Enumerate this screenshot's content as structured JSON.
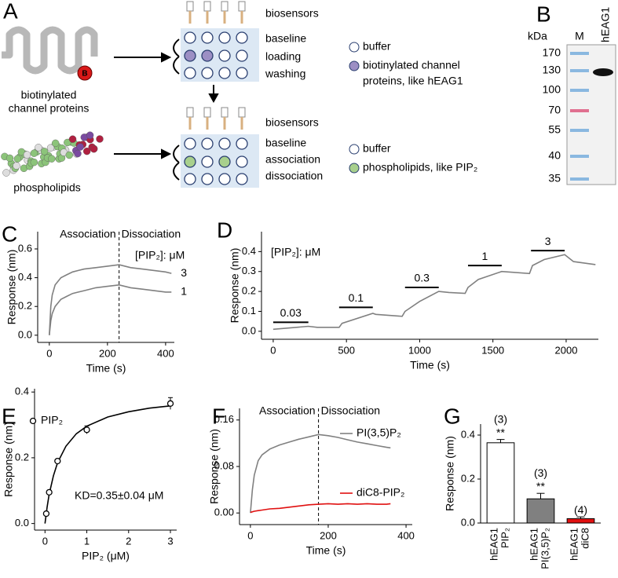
{
  "panel_a": {
    "label": "A",
    "protein_tag": "B",
    "protein_text": [
      "biotinylated",
      "channel proteins"
    ],
    "lipid_text": "phospholipids",
    "plate1": {
      "header": "biosensors",
      "rows": [
        "baseline",
        "loading",
        "washing"
      ]
    },
    "plate2": {
      "header": "biosensors",
      "rows": [
        "baseline",
        "association",
        "dissociation"
      ]
    },
    "legend1": {
      "buffer": "buffer",
      "sample": [
        "biotinylated channel",
        "proteins, like hEAG1"
      ]
    },
    "legend2": {
      "buffer": "buffer",
      "sample": [
        "phospholipids, like PIP₂"
      ]
    }
  },
  "panel_b": {
    "label": "B",
    "unit": "kDa",
    "lanes": [
      "M",
      "hEAG1"
    ],
    "markers": [
      170,
      130,
      100,
      70,
      55,
      40,
      35
    ]
  },
  "chart_data": [
    {
      "type": "line",
      "panel": "C",
      "x_label": "Time (s)",
      "y_label": "Response (nm)",
      "annotations": [
        "Association",
        "Dissociation"
      ],
      "divider_x": 240,
      "legend_title": "[PIP₂]: μM",
      "x": [
        0,
        5,
        10,
        20,
        40,
        60,
        80,
        100,
        120,
        160,
        200,
        240,
        280,
        320,
        360,
        400,
        420
      ],
      "series": [
        {
          "name": "3",
          "color": "#808080",
          "values": [
            0,
            0.2,
            0.28,
            0.35,
            0.4,
            0.42,
            0.44,
            0.45,
            0.46,
            0.47,
            0.48,
            0.49,
            0.47,
            0.46,
            0.45,
            0.44,
            0.43
          ]
        },
        {
          "name": "1",
          "color": "#808080",
          "values": [
            0,
            0.1,
            0.15,
            0.2,
            0.25,
            0.27,
            0.29,
            0.3,
            0.31,
            0.33,
            0.34,
            0.35,
            0.33,
            0.32,
            0.31,
            0.3,
            0.3
          ]
        }
      ],
      "xlim": [
        -40,
        430
      ],
      "xticks": [
        0,
        200,
        400
      ],
      "ylim": [
        -0.05,
        0.72
      ],
      "yticks": [
        {
          "value": 0,
          "label": "0.0"
        },
        0.2,
        0.4,
        0.6
      ]
    },
    {
      "type": "line",
      "panel": "D",
      "x_label": "Time (s)",
      "y_label": "Response (nm)",
      "legend_title": "[PIP₂]: μM",
      "x": [
        0,
        240,
        300,
        450,
        470,
        680,
        700,
        880,
        900,
        1000,
        1130,
        1200,
        1310,
        1330,
        1400,
        1560,
        1750,
        1770,
        1850,
        1990,
        2050,
        2200
      ],
      "series": [
        {
          "name": "PIP₂",
          "color": "#808080",
          "values": [
            0.01,
            0.025,
            0.02,
            0.02,
            0.04,
            0.09,
            0.085,
            0.075,
            0.1,
            0.15,
            0.2,
            0.195,
            0.19,
            0.22,
            0.26,
            0.3,
            0.29,
            0.33,
            0.36,
            0.385,
            0.35,
            0.335
          ]
        }
      ],
      "injections": [
        {
          "label": "0.03",
          "start": 0,
          "end": 240,
          "level": 0.045
        },
        {
          "label": "0.1",
          "start": 450,
          "end": 680,
          "level": 0.12
        },
        {
          "label": "0.3",
          "start": 900,
          "end": 1130,
          "level": 0.22
        },
        {
          "label": "1",
          "start": 1330,
          "end": 1560,
          "level": 0.33
        },
        {
          "label": "3",
          "start": 1760,
          "end": 1990,
          "level": 0.405
        }
      ],
      "xlim": [
        -80,
        2220
      ],
      "xticks": [
        0,
        500,
        1000,
        1500,
        2000
      ],
      "ylim": [
        -0.04,
        0.5
      ],
      "yticks": [
        {
          "value": 0,
          "label": "0.0"
        },
        0.1,
        0.2,
        0.3,
        0.4
      ]
    },
    {
      "type": "scatter",
      "panel": "E",
      "x_label": "PIP₂ (μM)",
      "y_label": "Response (nm)",
      "annotation": "KD=0.35±0.04 μM",
      "series": [
        {
          "name": "PIP₂",
          "color": "#000000",
          "x": [
            0.03,
            0.1,
            0.3,
            1,
            3
          ],
          "values": [
            0.03,
            0.095,
            0.19,
            0.285,
            0.365
          ],
          "errors": [
            0.003,
            0.005,
            0.005,
            0.012,
            0.018
          ]
        }
      ],
      "fit": {
        "x": [
          0,
          0.05,
          0.1,
          0.2,
          0.3,
          0.5,
          0.75,
          1,
          1.5,
          2,
          2.5,
          3
        ],
        "y": [
          0,
          0.05,
          0.089,
          0.145,
          0.185,
          0.235,
          0.273,
          0.296,
          0.324,
          0.34,
          0.351,
          0.358
        ]
      },
      "xlim": [
        -0.25,
        3.15
      ],
      "xticks": [
        0,
        1,
        2,
        3
      ],
      "ylim": [
        -0.02,
        0.41
      ],
      "yticks": [
        {
          "value": 0,
          "label": "0.0"
        },
        0.2,
        0.4
      ]
    },
    {
      "type": "line",
      "panel": "F",
      "x_label": "Time (s)",
      "y_label": "Response (nm)",
      "annotations": [
        "Association",
        "Dissociation"
      ],
      "divider_x": 175,
      "x": [
        0,
        5,
        10,
        20,
        30,
        50,
        75,
        100,
        125,
        150,
        175,
        200,
        225,
        250,
        275,
        300,
        325,
        350,
        360
      ],
      "series": [
        {
          "name": "PI(3,5)P₂",
          "color": "#808080",
          "values": [
            0,
            0.04,
            0.065,
            0.09,
            0.1,
            0.11,
            0.117,
            0.122,
            0.127,
            0.131,
            0.135,
            0.133,
            0.13,
            0.126,
            0.122,
            0.119,
            0.116,
            0.113,
            0.112
          ]
        },
        {
          "name": "diC8-PIP₂",
          "color": "#e01010",
          "values": [
            0.001,
            0.002,
            0.003,
            0.004,
            0.005,
            0.007,
            0.008,
            0.01,
            0.012,
            0.014,
            0.015,
            0.016,
            0.015,
            0.016,
            0.015,
            0.016,
            0.015,
            0.015,
            0.016
          ]
        }
      ],
      "xlim": [
        -28,
        416
      ],
      "xticks": [
        0,
        200,
        400
      ],
      "ylim": [
        -0.02,
        0.18
      ],
      "yticks": [
        {
          "value": 0,
          "label": "0.00"
        },
        {
          "value": 0.08,
          "label": "0.08"
        },
        {
          "value": 0.16,
          "label": "0.16"
        }
      ]
    },
    {
      "type": "bar",
      "panel": "G",
      "y_label": "Response (nm)",
      "categories": [
        "hEAG1 PIP₂",
        "hEAG1 PI(3,5)P₂",
        "hEAG1 diC8"
      ],
      "values": [
        0.365,
        0.11,
        0.02
      ],
      "errors": [
        0.015,
        0.025,
        0.008
      ],
      "colors": [
        "#ffffff",
        "#808080",
        "#e01010"
      ],
      "n_labels": [
        "(3)",
        "(3)",
        "(4)"
      ],
      "significance": [
        "**",
        "**",
        null
      ],
      "ylim": [
        0,
        0.45
      ],
      "yticks": [
        {
          "value": 0,
          "label": "0.0"
        },
        0.2,
        0.4
      ]
    }
  ]
}
